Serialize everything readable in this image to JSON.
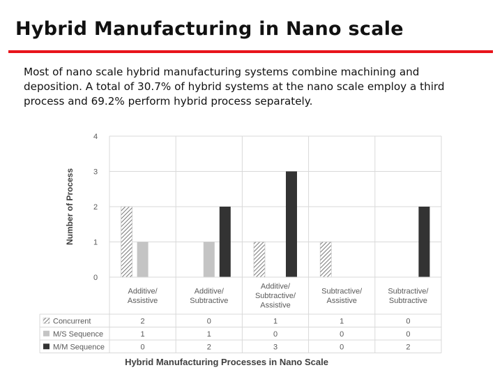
{
  "slide": {
    "title": "Hybrid Manufacturing in Nano scale",
    "body": "Most of nano scale hybrid manufacturing systems combine machining and deposition. A total of 30.7% of hybrid systems at the nano scale employ a third process and 69.2% perform hybrid process separately.",
    "accent_color": "#e8141b"
  },
  "chart_data": {
    "type": "bar",
    "categories": [
      [
        "Additive/",
        "Assistive"
      ],
      [
        "Additive/",
        "Subtractive"
      ],
      [
        "Additive/",
        "Subtractive/",
        "Assistive"
      ],
      [
        "Subtractive/",
        "Assistive"
      ],
      [
        "Subtractive/",
        "Subtractive"
      ]
    ],
    "series": [
      {
        "name": "Concurrent",
        "values": [
          2,
          0,
          1,
          1,
          0
        ],
        "color": "#ffffff",
        "pattern": "hatched"
      },
      {
        "name": "M/S Sequence",
        "values": [
          1,
          1,
          0,
          0,
          0
        ],
        "color": "#c4c4c4"
      },
      {
        "name": "M/M Sequence",
        "values": [
          0,
          2,
          3,
          0,
          2
        ],
        "color": "#333333"
      }
    ],
    "ylabel": "Number of Process",
    "xlabel": "Hybrid Manufacturing Processes in Nano Scale",
    "ylim": [
      0,
      4
    ],
    "yticks": [
      "0",
      "1",
      "2",
      "3",
      "4"
    ],
    "grid": true,
    "legend": "data-table"
  }
}
